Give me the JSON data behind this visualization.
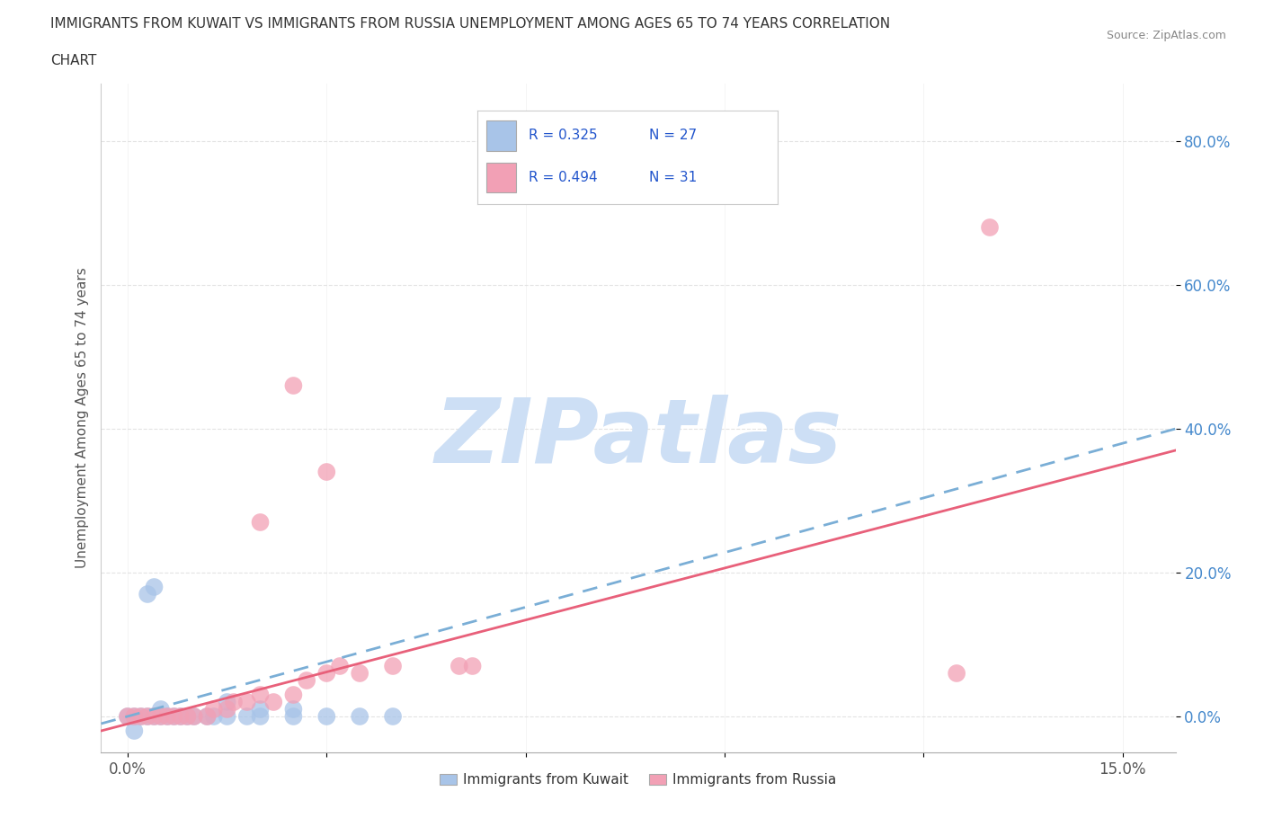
{
  "title_line1": "IMMIGRANTS FROM KUWAIT VS IMMIGRANTS FROM RUSSIA UNEMPLOYMENT AMONG AGES 65 TO 74 YEARS CORRELATION",
  "title_line2": "CHART",
  "source": "Source: ZipAtlas.com",
  "ylabel": "Unemployment Among Ages 65 to 74 years",
  "ytick_labels": [
    "0.0%",
    "20.0%",
    "40.0%",
    "60.0%",
    "80.0%"
  ],
  "ytick_values": [
    0.0,
    0.2,
    0.4,
    0.6,
    0.8
  ],
  "xlim": [
    -0.004,
    0.158
  ],
  "ylim": [
    -0.05,
    0.88
  ],
  "kuwait_R": 0.325,
  "kuwait_N": 27,
  "russia_R": 0.494,
  "russia_N": 31,
  "kuwait_color": "#a8c4e8",
  "russia_color": "#f2a0b5",
  "kuwait_line_color": "#7aaed6",
  "russia_line_color": "#e8607a",
  "kuwait_scatter": [
    [
      0.0,
      0.0
    ],
    [
      0.001,
      0.0
    ],
    [
      0.002,
      0.0
    ],
    [
      0.003,
      0.0
    ],
    [
      0.004,
      0.0
    ],
    [
      0.005,
      0.0
    ],
    [
      0.006,
      0.0
    ],
    [
      0.007,
      0.0
    ],
    [
      0.008,
      0.0
    ],
    [
      0.009,
      0.0
    ],
    [
      0.01,
      0.0
    ],
    [
      0.012,
      0.0
    ],
    [
      0.013,
      0.0
    ],
    [
      0.015,
      0.0
    ],
    [
      0.018,
      0.0
    ],
    [
      0.02,
      0.0
    ],
    [
      0.025,
      0.0
    ],
    [
      0.003,
      0.17
    ],
    [
      0.004,
      0.18
    ],
    [
      0.001,
      -0.02
    ],
    [
      0.005,
      0.01
    ],
    [
      0.015,
      0.02
    ],
    [
      0.02,
      0.01
    ],
    [
      0.025,
      0.01
    ],
    [
      0.03,
      0.0
    ],
    [
      0.035,
      0.0
    ],
    [
      0.04,
      0.0
    ]
  ],
  "russia_scatter": [
    [
      0.0,
      0.0
    ],
    [
      0.001,
      0.0
    ],
    [
      0.002,
      0.0
    ],
    [
      0.003,
      0.0
    ],
    [
      0.004,
      0.0
    ],
    [
      0.005,
      0.0
    ],
    [
      0.006,
      0.0
    ],
    [
      0.007,
      0.0
    ],
    [
      0.008,
      0.0
    ],
    [
      0.009,
      0.0
    ],
    [
      0.01,
      0.0
    ],
    [
      0.012,
      0.0
    ],
    [
      0.013,
      0.01
    ],
    [
      0.015,
      0.01
    ],
    [
      0.016,
      0.02
    ],
    [
      0.018,
      0.02
    ],
    [
      0.02,
      0.03
    ],
    [
      0.022,
      0.02
    ],
    [
      0.025,
      0.03
    ],
    [
      0.027,
      0.05
    ],
    [
      0.03,
      0.06
    ],
    [
      0.032,
      0.07
    ],
    [
      0.035,
      0.06
    ],
    [
      0.04,
      0.07
    ],
    [
      0.05,
      0.07
    ],
    [
      0.052,
      0.07
    ],
    [
      0.025,
      0.46
    ],
    [
      0.03,
      0.34
    ],
    [
      0.02,
      0.27
    ],
    [
      0.125,
      0.06
    ],
    [
      0.13,
      0.68
    ]
  ],
  "kuwait_trend": [
    0.0,
    0.15,
    0.4
  ],
  "russia_trend": [
    -0.02,
    0.0,
    0.37
  ],
  "watermark": "ZIPatlas",
  "watermark_color": "#cddff5",
  "legend_labels": [
    "Immigrants from Kuwait",
    "Immigrants from Russia"
  ],
  "background_color": "#ffffff",
  "gridcolor": "#e0e0e0"
}
